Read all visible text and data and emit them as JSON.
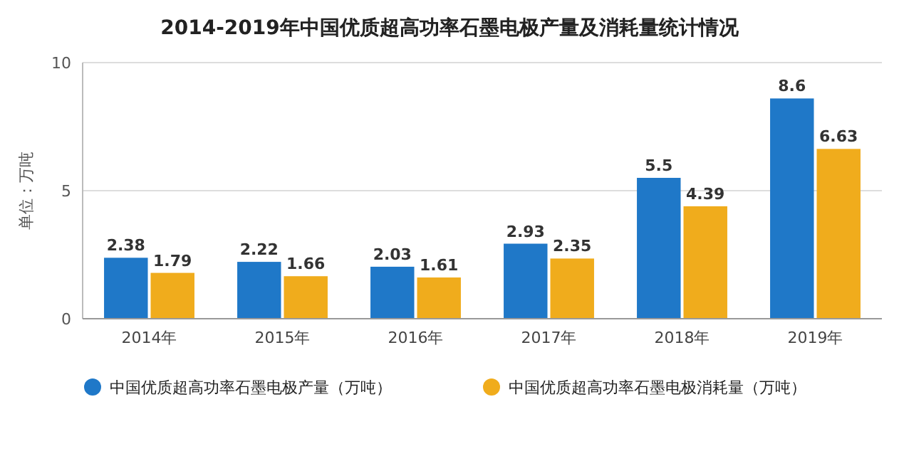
{
  "chart_data": {
    "type": "bar",
    "title": "2014-2019年中国优质超高功率石墨电极产量及消耗量统计情况",
    "ylabel": "单位：万吨",
    "categories": [
      "2014年",
      "2015年",
      "2016年",
      "2017年",
      "2018年",
      "2019年"
    ],
    "series": [
      {
        "name": "中国优质超高功率石墨电极产量（万吨）",
        "color": "#1f78c8",
        "values": [
          2.38,
          2.22,
          2.03,
          2.93,
          5.5,
          8.6
        ]
      },
      {
        "name": "中国优质超高功率石墨电极消耗量（万吨）",
        "color": "#f0ac1c",
        "values": [
          1.79,
          1.66,
          1.61,
          2.35,
          4.39,
          6.63
        ]
      }
    ],
    "ylim": [
      0,
      10
    ],
    "yticks": [
      0,
      5,
      10
    ],
    "grid": "y",
    "legend": "bottom",
    "data_labels": true
  }
}
